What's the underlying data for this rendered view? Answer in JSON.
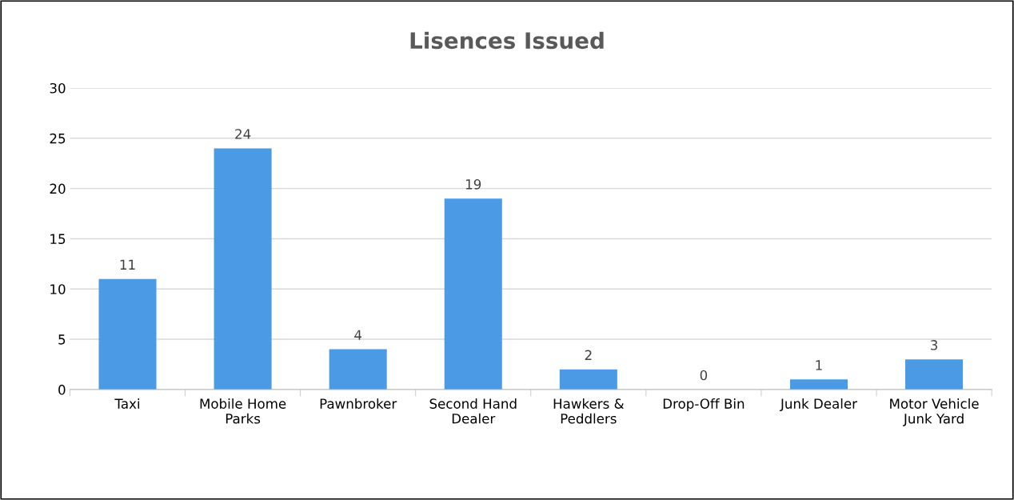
{
  "chart_data": {
    "type": "bar",
    "title": "Lisences Issued",
    "categories": [
      "Taxi",
      "Mobile Home\nParks",
      "Pawnbroker",
      "Second Hand\nDealer",
      "Hawkers &\nPeddlers",
      "Drop-Off Bin",
      "Junk Dealer",
      "Motor Vehicle\nJunk Yard"
    ],
    "values": [
      11,
      24,
      4,
      19,
      2,
      0,
      1,
      3
    ],
    "color": "#4a9ae6",
    "ylim": [
      0,
      30
    ],
    "yticks": [
      0,
      5,
      10,
      15,
      20,
      25,
      30
    ],
    "grid": "y",
    "data_labels": true
  }
}
